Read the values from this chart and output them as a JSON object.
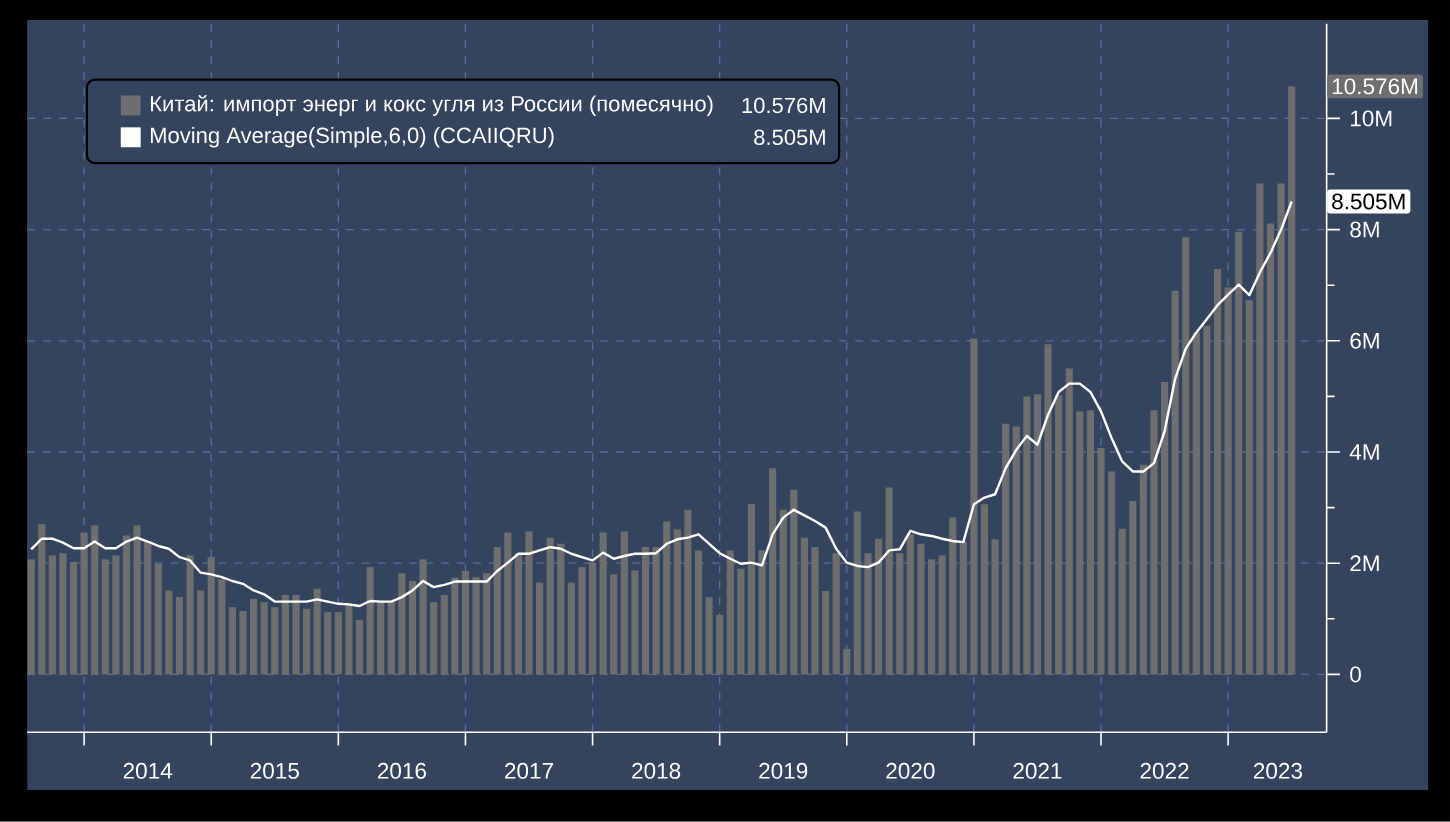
{
  "chart_data": {
    "type": "bar",
    "x": [
      "2013-08",
      "2013-09",
      "2013-10",
      "2013-11",
      "2013-12",
      "2014-01",
      "2014-02",
      "2014-03",
      "2014-04",
      "2014-05",
      "2014-06",
      "2014-07",
      "2014-08",
      "2014-09",
      "2014-10",
      "2014-11",
      "2014-12",
      "2015-01",
      "2015-02",
      "2015-03",
      "2015-04",
      "2015-05",
      "2015-06",
      "2015-07",
      "2015-08",
      "2015-09",
      "2015-10",
      "2015-11",
      "2015-12",
      "2016-01",
      "2016-02",
      "2016-03",
      "2016-04",
      "2016-05",
      "2016-06",
      "2016-07",
      "2016-08",
      "2016-09",
      "2016-10",
      "2016-11",
      "2016-12",
      "2017-01",
      "2017-02",
      "2017-03",
      "2017-04",
      "2017-05",
      "2017-06",
      "2017-07",
      "2017-08",
      "2017-09",
      "2017-10",
      "2017-11",
      "2017-12",
      "2018-01",
      "2018-02",
      "2018-03",
      "2018-04",
      "2018-05",
      "2018-06",
      "2018-07",
      "2018-08",
      "2018-09",
      "2018-10",
      "2018-11",
      "2018-12",
      "2019-01",
      "2019-02",
      "2019-03",
      "2019-04",
      "2019-05",
      "2019-06",
      "2019-07",
      "2019-08",
      "2019-09",
      "2019-10",
      "2019-11",
      "2019-12",
      "2020-01",
      "2020-02",
      "2020-03",
      "2020-04",
      "2020-05",
      "2020-06",
      "2020-07",
      "2020-08",
      "2020-09",
      "2020-10",
      "2020-11",
      "2020-12",
      "2021-01",
      "2021-02",
      "2021-03",
      "2021-04",
      "2021-05",
      "2021-06",
      "2021-07",
      "2021-08",
      "2021-09",
      "2021-10",
      "2021-11",
      "2021-12",
      "2022-01",
      "2022-02",
      "2022-03",
      "2022-04",
      "2022-05",
      "2022-06",
      "2022-07",
      "2022-08",
      "2022-09",
      "2022-10",
      "2022-11",
      "2022-12",
      "2023-01",
      "2023-02",
      "2023-03",
      "2023-04",
      "2023-05",
      "2023-06",
      "2023-07"
    ],
    "series": [
      {
        "name": "Китай: импорт энерг и кокс угля из России (помесячно)",
        "color": "#6e6e6e",
        "values": [
          2.07,
          2.7,
          2.14,
          2.18,
          2.02,
          2.55,
          2.68,
          2.07,
          2.14,
          2.5,
          2.68,
          2.4,
          1.99,
          1.51,
          1.39,
          2.14,
          1.51,
          2.11,
          1.71,
          1.21,
          1.14,
          1.36,
          1.3,
          1.21,
          1.43,
          1.43,
          1.18,
          1.54,
          1.12,
          1.12,
          1.27,
          0.98,
          1.93,
          1.3,
          1.3,
          1.82,
          1.68,
          2.07,
          1.3,
          1.43,
          1.74,
          1.86,
          1.75,
          1.82,
          2.29,
          2.55,
          2.18,
          2.57,
          1.65,
          2.46,
          2.35,
          1.65,
          1.93,
          2.01,
          2.55,
          1.8,
          2.57,
          1.87,
          2.29,
          2.29,
          2.75,
          2.61,
          2.96,
          2.23,
          1.39,
          1.07,
          2.23,
          1.9,
          3.07,
          2.23,
          3.71,
          2.96,
          3.32,
          2.46,
          2.29,
          1.5,
          2.18,
          0.46,
          2.93,
          2.18,
          2.44,
          3.36,
          2.18,
          2.52,
          2.35,
          2.07,
          2.14,
          2.82,
          2.4,
          6.04,
          3.06,
          2.43,
          4.51,
          4.46,
          5.0,
          5.04,
          5.94,
          5.02,
          5.5,
          4.73,
          4.75,
          4.07,
          3.65,
          2.62,
          3.12,
          3.77,
          4.75,
          5.26,
          6.9,
          7.86,
          6.15,
          6.27,
          7.29,
          6.96,
          7.96,
          6.73,
          8.83,
          8.11,
          8.83,
          10.576
        ]
      },
      {
        "name": "Moving Average(Simple,6,0) (CCAIIQRU)",
        "type": "line",
        "color": "#ffffff",
        "values": [
          2.25,
          2.44,
          2.44,
          2.37,
          2.27,
          2.27,
          2.39,
          2.27,
          2.27,
          2.39,
          2.46,
          2.39,
          2.31,
          2.26,
          2.11,
          2.05,
          1.83,
          1.8,
          1.75,
          1.68,
          1.63,
          1.51,
          1.44,
          1.31,
          1.31,
          1.31,
          1.31,
          1.35,
          1.31,
          1.27,
          1.26,
          1.23,
          1.32,
          1.31,
          1.31,
          1.39,
          1.51,
          1.68,
          1.57,
          1.61,
          1.67,
          1.67,
          1.67,
          1.67,
          1.86,
          2.01,
          2.17,
          2.17,
          2.23,
          2.29,
          2.26,
          2.17,
          2.11,
          2.05,
          2.19,
          2.08,
          2.13,
          2.17,
          2.17,
          2.18,
          2.35,
          2.43,
          2.46,
          2.52,
          2.35,
          2.18,
          2.08,
          1.99,
          2.01,
          1.96,
          2.52,
          2.82,
          2.96,
          2.86,
          2.76,
          2.64,
          2.26,
          2.01,
          1.95,
          1.93,
          2.01,
          2.23,
          2.25,
          2.58,
          2.52,
          2.49,
          2.44,
          2.4,
          2.38,
          3.06,
          3.18,
          3.24,
          3.71,
          4.04,
          4.29,
          4.13,
          4.67,
          5.08,
          5.23,
          5.23,
          5.08,
          4.73,
          4.25,
          3.83,
          3.65,
          3.65,
          3.8,
          4.37,
          5.32,
          5.86,
          6.15,
          6.39,
          6.64,
          6.83,
          7.01,
          6.82,
          7.23,
          7.58,
          8.0,
          8.505
        ]
      }
    ],
    "xlim": [
      "2013-07-20",
      "2023-10-10"
    ],
    "xticks": [
      {
        "value": "2014-01",
        "label": null
      },
      {
        "value": "2014-07",
        "label": "2014"
      },
      {
        "value": "2015-01",
        "label": null
      },
      {
        "value": "2015-07",
        "label": "2015"
      },
      {
        "value": "2016-01",
        "label": null
      },
      {
        "value": "2016-07",
        "label": "2016"
      },
      {
        "value": "2017-01",
        "label": null
      },
      {
        "value": "2017-07",
        "label": "2017"
      },
      {
        "value": "2018-01",
        "label": null
      },
      {
        "value": "2018-07",
        "label": "2018"
      },
      {
        "value": "2019-01",
        "label": null
      },
      {
        "value": "2019-07",
        "label": "2019"
      },
      {
        "value": "2020-01",
        "label": null
      },
      {
        "value": "2020-07",
        "label": "2020"
      },
      {
        "value": "2021-01",
        "label": null
      },
      {
        "value": "2021-07",
        "label": "2021"
      },
      {
        "value": "2022-01",
        "label": null
      },
      {
        "value": "2022-07",
        "label": "2022"
      },
      {
        "value": "2023-01",
        "label": null
      },
      {
        "value": "2023-05-22",
        "label": "2023"
      }
    ],
    "ylim": [
      -1.04,
      11.7
    ],
    "yticks": [
      0,
      {
        "value": 2,
        "label": "2M"
      },
      {
        "value": 4,
        "label": "4M"
      },
      {
        "value": 6,
        "label": "6M"
      },
      {
        "value": 8,
        "label": "8M"
      },
      {
        "value": 10,
        "label": "10M"
      }
    ],
    "annotations": [
      "10.576M",
      "8.505M",
      "10.576M",
      "8.505M"
    ],
    "grid": true,
    "legend": "top left"
  }
}
